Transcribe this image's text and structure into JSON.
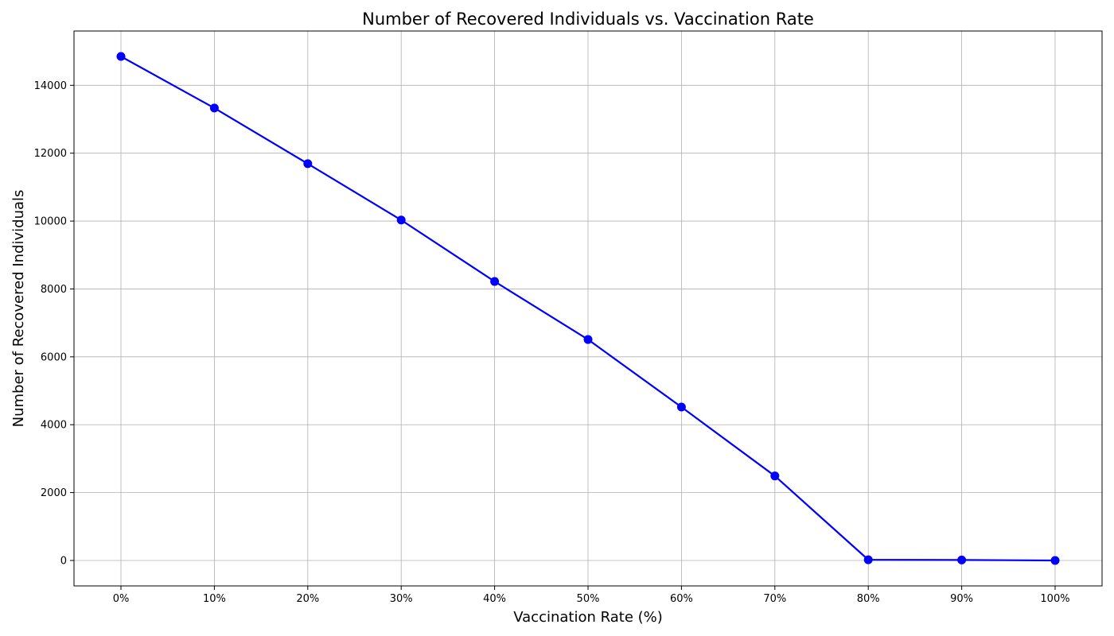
{
  "chart_data": {
    "type": "line",
    "title": "Number of Recovered Individuals vs. Vaccination Rate",
    "xlabel": "Vaccination Rate (%)",
    "ylabel": "Number of Recovered Individuals",
    "categories": [
      "0%",
      "10%",
      "20%",
      "30%",
      "40%",
      "50%",
      "60%",
      "70%",
      "80%",
      "90%",
      "100%"
    ],
    "y_ticks": [
      "0",
      "2000",
      "4000",
      "6000",
      "8000",
      "10000",
      "12000",
      "14000"
    ],
    "y_tick_values": [
      0,
      2000,
      4000,
      6000,
      8000,
      10000,
      12000,
      14000
    ],
    "ylim": [
      -750,
      15600
    ],
    "series": [
      {
        "values": [
          14850,
          13330,
          11690,
          10030,
          8220,
          6510,
          4520,
          2490,
          20,
          15,
          0
        ]
      }
    ],
    "grid": true,
    "legend": "none",
    "colors": {
      "line": "#0000ff",
      "marker": "#0000ff",
      "grid": "#b0b0b0",
      "axes": "#000000"
    }
  }
}
